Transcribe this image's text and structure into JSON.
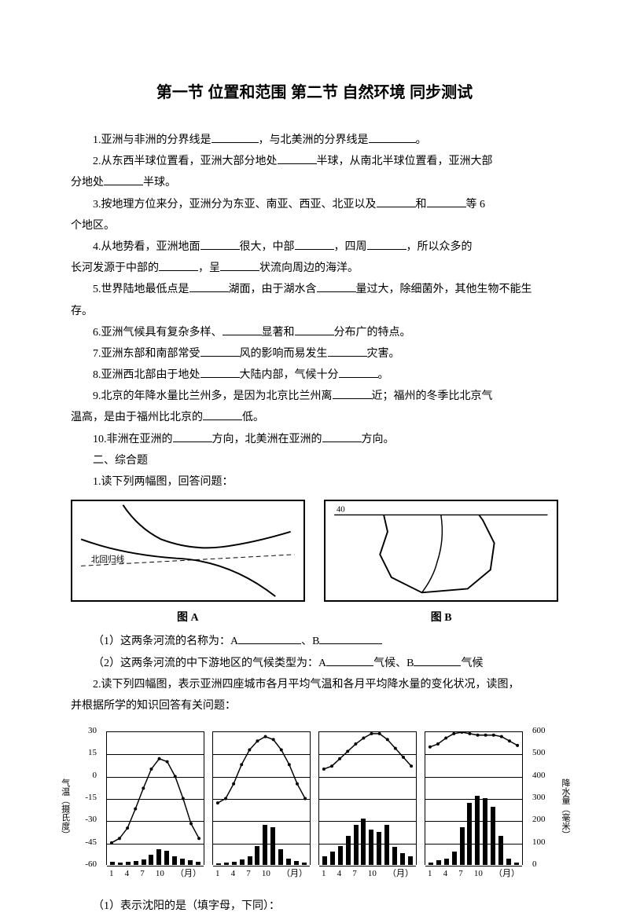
{
  "title": "第一节 位置和范围 第二节 自然环境 同步测试",
  "q1": {
    "t1": "1.亚洲与非洲的分界线是",
    "t2": "，与北美洲的分界线是",
    "t3": "。"
  },
  "q2": {
    "t1": "2.从东西半球位置看，亚洲大部分地处",
    "t2": "半球，从南北半球位置看，亚洲大部",
    "t3": "分地处",
    "t4": "半球。"
  },
  "q3": {
    "t1": "3.按地理方位来分，亚洲分为东亚、南亚、西亚、北亚以及",
    "t2": "和",
    "t3": "等 6",
    "t4": "个地区。"
  },
  "q4": {
    "t1": "4.从地势看，亚洲地面",
    "t2": "很大，中部",
    "t3": "，四周",
    "t4": "，所以众多的",
    "t5": "长河发源于中部的",
    "t6": "，呈",
    "t7": "状流向周边的海洋。"
  },
  "q5": {
    "t1": "5.世界陆地最低点是",
    "t2": "湖面，由于湖水含",
    "t3": "量过大，除细菌外，其他生物不能生",
    "t4": "存。"
  },
  "q6": {
    "t1": "6.亚洲气候具有复杂多样、",
    "t2": "显著和",
    "t3": "分布广的特点。"
  },
  "q7": {
    "t1": "7.亚洲东部和南部常受",
    "t2": "风的影响而易发生",
    "t3": "灾害。"
  },
  "q8": {
    "t1": "8.亚洲西北部由于地处",
    "t2": "大陆内部，气候十分",
    "t3": "。"
  },
  "q9": {
    "t1": "9.北京的年降水量比兰州多，是因为北京比兰州离",
    "t2": "近；福州的冬季比北京气",
    "t3": "温高，是由于福州比北京的",
    "t4": "低。"
  },
  "q10": {
    "t1": "10.非洲在亚洲的",
    "t2": "方向，北美洲在亚洲的",
    "t3": "方向。"
  },
  "sec2": "二、综合题",
  "c1": {
    "intro": "1.读下列两幅图，回答问题："
  },
  "mapA": {
    "label": "北回归线",
    "caption": "图 A"
  },
  "mapB": {
    "label": "40",
    "caption": "图 B"
  },
  "c1q1": {
    "t1": "（1）这两条河流的名称为：A",
    "t2": "、B"
  },
  "c1q2": {
    "t1": "（2）这两条河流的中下游地区的气候类型为：A",
    "t2": "气候、B",
    "t3": "气候"
  },
  "c2": {
    "intro": "2.读下列四幅图，表示亚洲四座城市各月平均气温和各月平均降水量的变化状况，读图，",
    "cont": "并根据所学的知识回答有关问题："
  },
  "charts": {
    "temp_label": "气温（摄氏度）",
    "precip_label": "降水量（毫米）",
    "temp_ticks": [
      30,
      15,
      0,
      -15,
      -30,
      -45,
      -60
    ],
    "precip_ticks": [
      600,
      500,
      400,
      300,
      200,
      100,
      0
    ],
    "x_ticks": [
      "1",
      "4",
      "7",
      "10",
      "（月）"
    ],
    "bg": "#ffffff",
    "bar_color": "#000000",
    "line_color": "#000000",
    "chart_a": {
      "temp": [
        -45,
        -42,
        -35,
        -22,
        -8,
        5,
        12,
        10,
        0,
        -15,
        -32,
        -42
      ],
      "precip": [
        15,
        12,
        14,
        18,
        25,
        45,
        70,
        65,
        40,
        28,
        20,
        16
      ]
    },
    "chart_b": {
      "temp": [
        -18,
        -15,
        -5,
        8,
        18,
        24,
        27,
        25,
        18,
        8,
        -5,
        -15
      ],
      "precip": [
        8,
        10,
        15,
        25,
        40,
        85,
        180,
        170,
        70,
        30,
        18,
        10
      ]
    },
    "chart_c": {
      "temp": [
        5,
        7,
        12,
        17,
        22,
        26,
        29,
        29,
        25,
        19,
        13,
        7
      ],
      "precip": [
        40,
        60,
        85,
        130,
        180,
        210,
        160,
        150,
        180,
        80,
        55,
        40
      ]
    },
    "chart_d": {
      "temp": [
        20,
        22,
        26,
        29,
        30,
        29,
        28,
        28,
        28,
        27,
        24,
        21
      ],
      "precip": [
        10,
        20,
        30,
        60,
        170,
        280,
        310,
        300,
        260,
        130,
        30,
        10
      ]
    }
  },
  "c2q1": "（1）表示沈阳的是（填字母，下同）："
}
